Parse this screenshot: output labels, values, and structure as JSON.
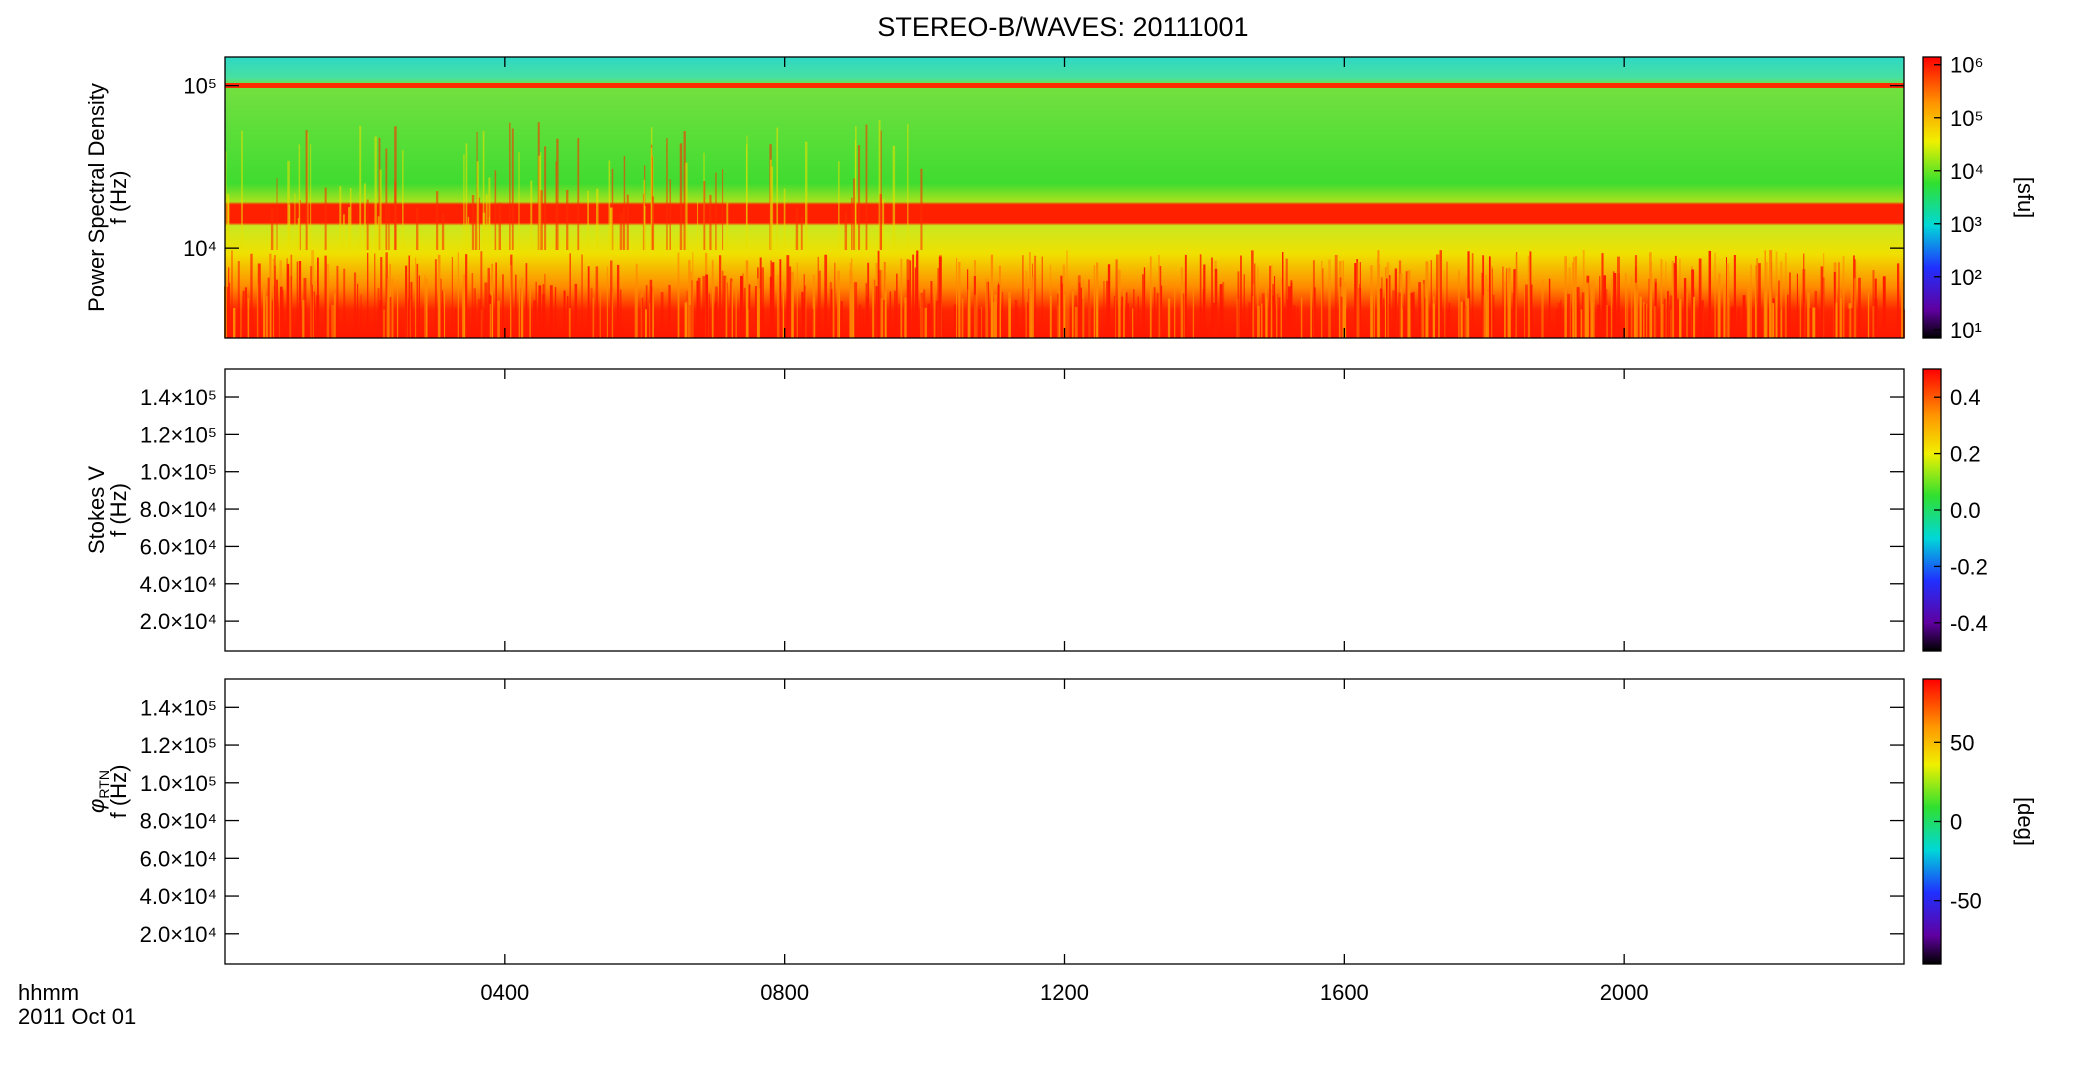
{
  "title": "STEREO-B/WAVES: 20111001",
  "xlabel": "hhmm",
  "date": "2011 Oct 01",
  "chart_data": [
    {
      "type": "spectrogram",
      "ylabel": [
        "Power Spectral Density",
        "f (Hz)"
      ],
      "log_y": true,
      "ylim": [
        2800,
        150000
      ],
      "yticks": [
        {
          "value": 10000,
          "label": "10⁴"
        },
        {
          "value": 100000,
          "label": "10⁵"
        }
      ],
      "xlim": [
        0,
        24
      ],
      "xticks": [
        {
          "value": 4,
          "label": "0400"
        },
        {
          "value": 8,
          "label": "0800"
        },
        {
          "value": 12,
          "label": "1200"
        },
        {
          "value": 16,
          "label": "1600"
        },
        {
          "value": 20,
          "label": "2000"
        }
      ],
      "colorbar": {
        "log": true,
        "zlim": [
          7,
          1400000
        ],
        "label": "[sfu]",
        "ticks": [
          {
            "value": 10,
            "label": "10¹"
          },
          {
            "value": 100,
            "label": "10²"
          },
          {
            "value": 1000,
            "label": "10³"
          },
          {
            "value": 10000,
            "label": "10⁴"
          },
          {
            "value": 100000,
            "label": "10⁵"
          },
          {
            "value": 1000000,
            "label": "10⁶"
          }
        ]
      }
    },
    {
      "type": "spectrogram",
      "ylabel": [
        "Stokes V",
        "f (Hz)"
      ],
      "log_y": false,
      "ylim": [
        4000,
        155000
      ],
      "yticks": [
        {
          "value": 20000,
          "label": "2.0×10⁴"
        },
        {
          "value": 40000,
          "label": "4.0×10⁴"
        },
        {
          "value": 60000,
          "label": "6.0×10⁴"
        },
        {
          "value": 80000,
          "label": "8.0×10⁴"
        },
        {
          "value": 100000,
          "label": "1.0×10⁵"
        },
        {
          "value": 120000,
          "label": "1.2×10⁵"
        },
        {
          "value": 140000,
          "label": "1.4×10⁵"
        }
      ],
      "xlim": [
        0,
        24
      ],
      "xticks": [
        {
          "value": 4,
          "label": "0400"
        },
        {
          "value": 8,
          "label": "0800"
        },
        {
          "value": 12,
          "label": "1200"
        },
        {
          "value": 16,
          "label": "1600"
        },
        {
          "value": 20,
          "label": "2000"
        }
      ],
      "colorbar": {
        "log": false,
        "zlim": [
          -0.5,
          0.5
        ],
        "ticks": [
          -0.4,
          -0.2,
          {
            "value": 0,
            "label": "0.0"
          },
          0.2,
          0.4
        ]
      }
    },
    {
      "type": "spectrogram",
      "ylabel_symbol": "φ",
      "ylabel_subscript": "RTN",
      "ylabel": [
        "f (Hz)"
      ],
      "log_y": false,
      "ylim": [
        4000,
        155000
      ],
      "yticks": [
        {
          "value": 20000,
          "label": "2.0×10⁴"
        },
        {
          "value": 40000,
          "label": "4.0×10⁴"
        },
        {
          "value": 60000,
          "label": "6.0×10⁴"
        },
        {
          "value": 80000,
          "label": "8.0×10⁴"
        },
        {
          "value": 100000,
          "label": "1.0×10⁵"
        },
        {
          "value": 120000,
          "label": "1.2×10⁵"
        },
        {
          "value": 140000,
          "label": "1.4×10⁵"
        }
      ],
      "xlim": [
        0,
        24
      ],
      "xticks": [
        {
          "value": 4,
          "label": "0400"
        },
        {
          "value": 8,
          "label": "0800"
        },
        {
          "value": 12,
          "label": "1200"
        },
        {
          "value": 16,
          "label": "1600"
        },
        {
          "value": 20,
          "label": "2000"
        }
      ],
      "colorbar": {
        "log": false,
        "zlim": [
          -90,
          90
        ],
        "label": "[deg]",
        "ticks": [
          -50,
          0,
          50
        ]
      }
    }
  ]
}
